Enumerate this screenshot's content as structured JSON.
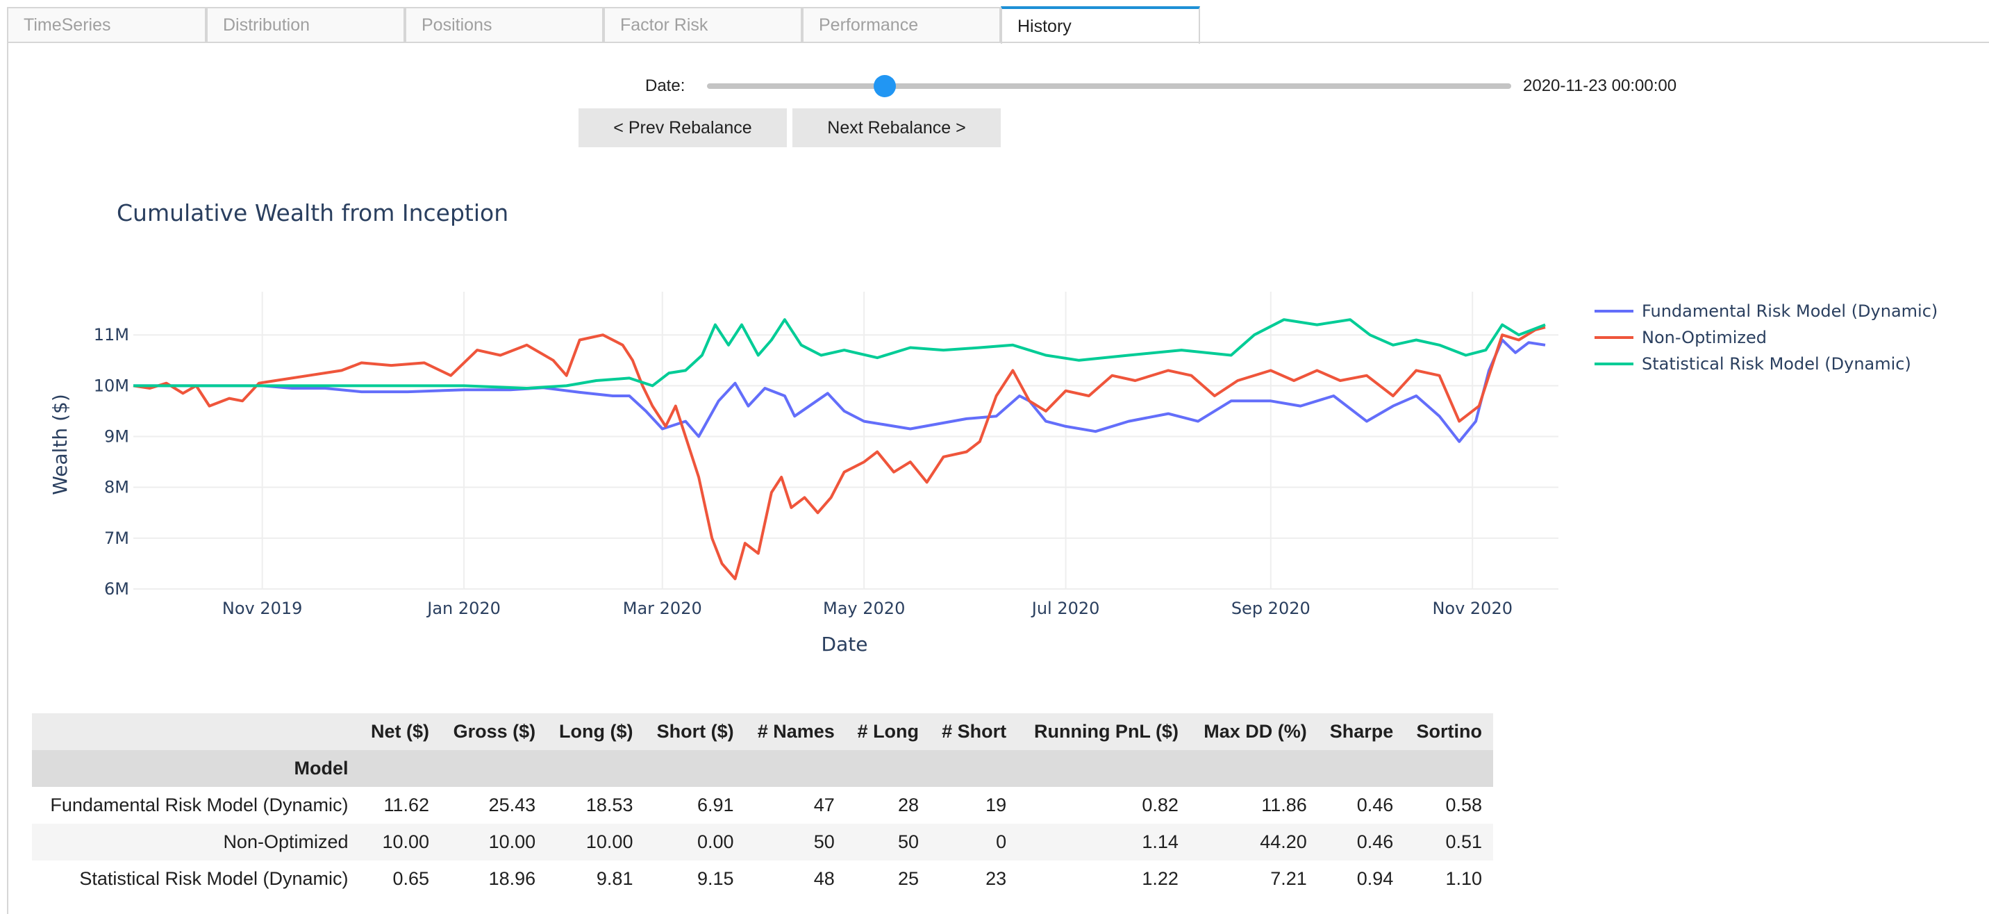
{
  "tabs": [
    "TimeSeries",
    "Distribution",
    "Positions",
    "Factor Risk",
    "Performance",
    "History"
  ],
  "active_tab": "History",
  "slider": {
    "label": "Date:",
    "value_text": "2020-11-23 00:00:00",
    "position_fraction": 0.221
  },
  "buttons": {
    "prev": "< Prev Rebalance",
    "next": "Next Rebalance >"
  },
  "chart_data": {
    "type": "line",
    "title": "Cumulative Wealth from Inception",
    "xlabel": "Date",
    "ylabel": "Wealth ($)",
    "x_range": [
      "2019-09-23",
      "2020-11-27"
    ],
    "y_range": [
      6000000,
      11850000
    ],
    "x_ticks": [
      {
        "date": "2019-11-01",
        "label": "Nov 2019"
      },
      {
        "date": "2020-01-01",
        "label": "Jan 2020"
      },
      {
        "date": "2020-03-01",
        "label": "Mar 2020"
      },
      {
        "date": "2020-05-01",
        "label": "May 2020"
      },
      {
        "date": "2020-07-01",
        "label": "Jul 2020"
      },
      {
        "date": "2020-09-01",
        "label": "Sep 2020"
      },
      {
        "date": "2020-11-01",
        "label": "Nov 2020"
      }
    ],
    "y_ticks": [
      {
        "value": 6000000,
        "label": "6M"
      },
      {
        "value": 7000000,
        "label": "7M"
      },
      {
        "value": 8000000,
        "label": "8M"
      },
      {
        "value": 9000000,
        "label": "9M"
      },
      {
        "value": 10000000,
        "label": "10M"
      },
      {
        "value": 11000000,
        "label": "11M"
      }
    ],
    "grid": true,
    "legend_position": "right",
    "series": [
      {
        "name": "Fundamental Risk Model (Dynamic)",
        "color": "#636efa",
        "points": [
          [
            "2019-09-23",
            10000000
          ],
          [
            "2019-10-15",
            10000000
          ],
          [
            "2019-11-01",
            10000000
          ],
          [
            "2019-11-10",
            9950000
          ],
          [
            "2019-11-20",
            9950000
          ],
          [
            "2019-12-01",
            9880000
          ],
          [
            "2019-12-15",
            9880000
          ],
          [
            "2020-01-01",
            9920000
          ],
          [
            "2020-01-15",
            9920000
          ],
          [
            "2020-01-25",
            9960000
          ],
          [
            "2020-02-05",
            9870000
          ],
          [
            "2020-02-15",
            9800000
          ],
          [
            "2020-02-20",
            9800000
          ],
          [
            "2020-02-25",
            9500000
          ],
          [
            "2020-03-01",
            9150000
          ],
          [
            "2020-03-08",
            9300000
          ],
          [
            "2020-03-12",
            9000000
          ],
          [
            "2020-03-18",
            9700000
          ],
          [
            "2020-03-23",
            10050000
          ],
          [
            "2020-03-27",
            9600000
          ],
          [
            "2020-04-01",
            9950000
          ],
          [
            "2020-04-07",
            9800000
          ],
          [
            "2020-04-10",
            9400000
          ],
          [
            "2020-04-20",
            9850000
          ],
          [
            "2020-04-25",
            9500000
          ],
          [
            "2020-05-01",
            9300000
          ],
          [
            "2020-05-15",
            9150000
          ],
          [
            "2020-06-01",
            9350000
          ],
          [
            "2020-06-10",
            9400000
          ],
          [
            "2020-06-17",
            9800000
          ],
          [
            "2020-06-20",
            9700000
          ],
          [
            "2020-06-25",
            9300000
          ],
          [
            "2020-07-01",
            9200000
          ],
          [
            "2020-07-10",
            9100000
          ],
          [
            "2020-07-20",
            9300000
          ],
          [
            "2020-08-01",
            9450000
          ],
          [
            "2020-08-10",
            9300000
          ],
          [
            "2020-08-20",
            9700000
          ],
          [
            "2020-09-01",
            9700000
          ],
          [
            "2020-09-10",
            9600000
          ],
          [
            "2020-09-20",
            9800000
          ],
          [
            "2020-09-30",
            9300000
          ],
          [
            "2020-10-08",
            9600000
          ],
          [
            "2020-10-15",
            9800000
          ],
          [
            "2020-10-22",
            9400000
          ],
          [
            "2020-10-28",
            8900000
          ],
          [
            "2020-11-02",
            9300000
          ],
          [
            "2020-11-06",
            10300000
          ],
          [
            "2020-11-10",
            10900000
          ],
          [
            "2020-11-14",
            10650000
          ],
          [
            "2020-11-18",
            10850000
          ],
          [
            "2020-11-23",
            10800000
          ]
        ]
      },
      {
        "name": "Non-Optimized",
        "color": "#ef553b",
        "points": [
          [
            "2019-09-23",
            10000000
          ],
          [
            "2019-09-28",
            9950000
          ],
          [
            "2019-10-03",
            10050000
          ],
          [
            "2019-10-08",
            9850000
          ],
          [
            "2019-10-12",
            10000000
          ],
          [
            "2019-10-16",
            9600000
          ],
          [
            "2019-10-22",
            9750000
          ],
          [
            "2019-10-26",
            9700000
          ],
          [
            "2019-10-31",
            10050000
          ],
          [
            "2019-11-05",
            10100000
          ],
          [
            "2019-11-15",
            10200000
          ],
          [
            "2019-11-25",
            10300000
          ],
          [
            "2019-12-01",
            10450000
          ],
          [
            "2019-12-10",
            10400000
          ],
          [
            "2019-12-20",
            10450000
          ],
          [
            "2019-12-28",
            10200000
          ],
          [
            "2020-01-05",
            10700000
          ],
          [
            "2020-01-12",
            10600000
          ],
          [
            "2020-01-20",
            10800000
          ],
          [
            "2020-01-28",
            10500000
          ],
          [
            "2020-02-01",
            10200000
          ],
          [
            "2020-02-05",
            10900000
          ],
          [
            "2020-02-12",
            11000000
          ],
          [
            "2020-02-18",
            10800000
          ],
          [
            "2020-02-21",
            10500000
          ],
          [
            "2020-02-24",
            10000000
          ],
          [
            "2020-02-27",
            9600000
          ],
          [
            "2020-03-02",
            9200000
          ],
          [
            "2020-03-05",
            9600000
          ],
          [
            "2020-03-08",
            9000000
          ],
          [
            "2020-03-12",
            8200000
          ],
          [
            "2020-03-16",
            7000000
          ],
          [
            "2020-03-19",
            6500000
          ],
          [
            "2020-03-23",
            6200000
          ],
          [
            "2020-03-26",
            6900000
          ],
          [
            "2020-03-30",
            6700000
          ],
          [
            "2020-04-03",
            7900000
          ],
          [
            "2020-04-06",
            8200000
          ],
          [
            "2020-04-09",
            7600000
          ],
          [
            "2020-04-13",
            7800000
          ],
          [
            "2020-04-17",
            7500000
          ],
          [
            "2020-04-21",
            7800000
          ],
          [
            "2020-04-25",
            8300000
          ],
          [
            "2020-05-01",
            8500000
          ],
          [
            "2020-05-05",
            8700000
          ],
          [
            "2020-05-10",
            8300000
          ],
          [
            "2020-05-15",
            8500000
          ],
          [
            "2020-05-20",
            8100000
          ],
          [
            "2020-05-25",
            8600000
          ],
          [
            "2020-06-01",
            8700000
          ],
          [
            "2020-06-05",
            8900000
          ],
          [
            "2020-06-10",
            9800000
          ],
          [
            "2020-06-15",
            10300000
          ],
          [
            "2020-06-20",
            9700000
          ],
          [
            "2020-06-25",
            9500000
          ],
          [
            "2020-07-01",
            9900000
          ],
          [
            "2020-07-08",
            9800000
          ],
          [
            "2020-07-15",
            10200000
          ],
          [
            "2020-07-22",
            10100000
          ],
          [
            "2020-08-01",
            10300000
          ],
          [
            "2020-08-08",
            10200000
          ],
          [
            "2020-08-15",
            9800000
          ],
          [
            "2020-08-22",
            10100000
          ],
          [
            "2020-09-01",
            10300000
          ],
          [
            "2020-09-08",
            10100000
          ],
          [
            "2020-09-15",
            10300000
          ],
          [
            "2020-09-22",
            10100000
          ],
          [
            "2020-09-30",
            10200000
          ],
          [
            "2020-10-08",
            9800000
          ],
          [
            "2020-10-15",
            10300000
          ],
          [
            "2020-10-22",
            10200000
          ],
          [
            "2020-10-28",
            9300000
          ],
          [
            "2020-11-03",
            9600000
          ],
          [
            "2020-11-06",
            10200000
          ],
          [
            "2020-11-10",
            11000000
          ],
          [
            "2020-11-15",
            10900000
          ],
          [
            "2020-11-20",
            11100000
          ],
          [
            "2020-11-23",
            11150000
          ]
        ]
      },
      {
        "name": "Statistical Risk Model (Dynamic)",
        "color": "#00cc96",
        "points": [
          [
            "2019-09-23",
            10000000
          ],
          [
            "2019-11-15",
            10000000
          ],
          [
            "2020-01-01",
            10000000
          ],
          [
            "2020-01-20",
            9950000
          ],
          [
            "2020-02-01",
            10000000
          ],
          [
            "2020-02-10",
            10100000
          ],
          [
            "2020-02-20",
            10150000
          ],
          [
            "2020-02-27",
            10000000
          ],
          [
            "2020-03-03",
            10250000
          ],
          [
            "2020-03-08",
            10300000
          ],
          [
            "2020-03-13",
            10600000
          ],
          [
            "2020-03-17",
            11200000
          ],
          [
            "2020-03-21",
            10800000
          ],
          [
            "2020-03-25",
            11200000
          ],
          [
            "2020-03-30",
            10600000
          ],
          [
            "2020-04-03",
            10900000
          ],
          [
            "2020-04-07",
            11300000
          ],
          [
            "2020-04-12",
            10800000
          ],
          [
            "2020-04-18",
            10600000
          ],
          [
            "2020-04-25",
            10700000
          ],
          [
            "2020-05-05",
            10550000
          ],
          [
            "2020-05-15",
            10750000
          ],
          [
            "2020-05-25",
            10700000
          ],
          [
            "2020-06-05",
            10750000
          ],
          [
            "2020-06-15",
            10800000
          ],
          [
            "2020-06-25",
            10600000
          ],
          [
            "2020-07-05",
            10500000
          ],
          [
            "2020-07-20",
            10600000
          ],
          [
            "2020-08-05",
            10700000
          ],
          [
            "2020-08-20",
            10600000
          ],
          [
            "2020-08-27",
            11000000
          ],
          [
            "2020-09-05",
            11300000
          ],
          [
            "2020-09-15",
            11200000
          ],
          [
            "2020-09-25",
            11300000
          ],
          [
            "2020-10-01",
            11000000
          ],
          [
            "2020-10-08",
            10800000
          ],
          [
            "2020-10-15",
            10900000
          ],
          [
            "2020-10-22",
            10800000
          ],
          [
            "2020-10-30",
            10600000
          ],
          [
            "2020-11-05",
            10700000
          ],
          [
            "2020-11-10",
            11200000
          ],
          [
            "2020-11-15",
            11000000
          ],
          [
            "2020-11-23",
            11200000
          ]
        ]
      }
    ]
  },
  "table": {
    "columns": [
      "Net ($)",
      "Gross ($)",
      "Long ($)",
      "Short ($)",
      "# Names",
      "# Long",
      "# Short",
      "Running PnL ($)",
      "Max DD (%)",
      "Sharpe",
      "Sortino"
    ],
    "index_name": "Model",
    "rows": [
      {
        "model": "Fundamental Risk Model (Dynamic)",
        "values": [
          "11.62",
          "25.43",
          "18.53",
          "6.91",
          "47",
          "28",
          "19",
          "0.82",
          "11.86",
          "0.46",
          "0.58"
        ]
      },
      {
        "model": "Non-Optimized",
        "values": [
          "10.00",
          "10.00",
          "10.00",
          "0.00",
          "50",
          "50",
          "0",
          "1.14",
          "44.20",
          "0.46",
          "0.51"
        ]
      },
      {
        "model": "Statistical Risk Model (Dynamic)",
        "values": [
          "0.65",
          "18.96",
          "9.81",
          "9.15",
          "48",
          "25",
          "23",
          "1.22",
          "7.21",
          "0.94",
          "1.10"
        ]
      }
    ]
  }
}
